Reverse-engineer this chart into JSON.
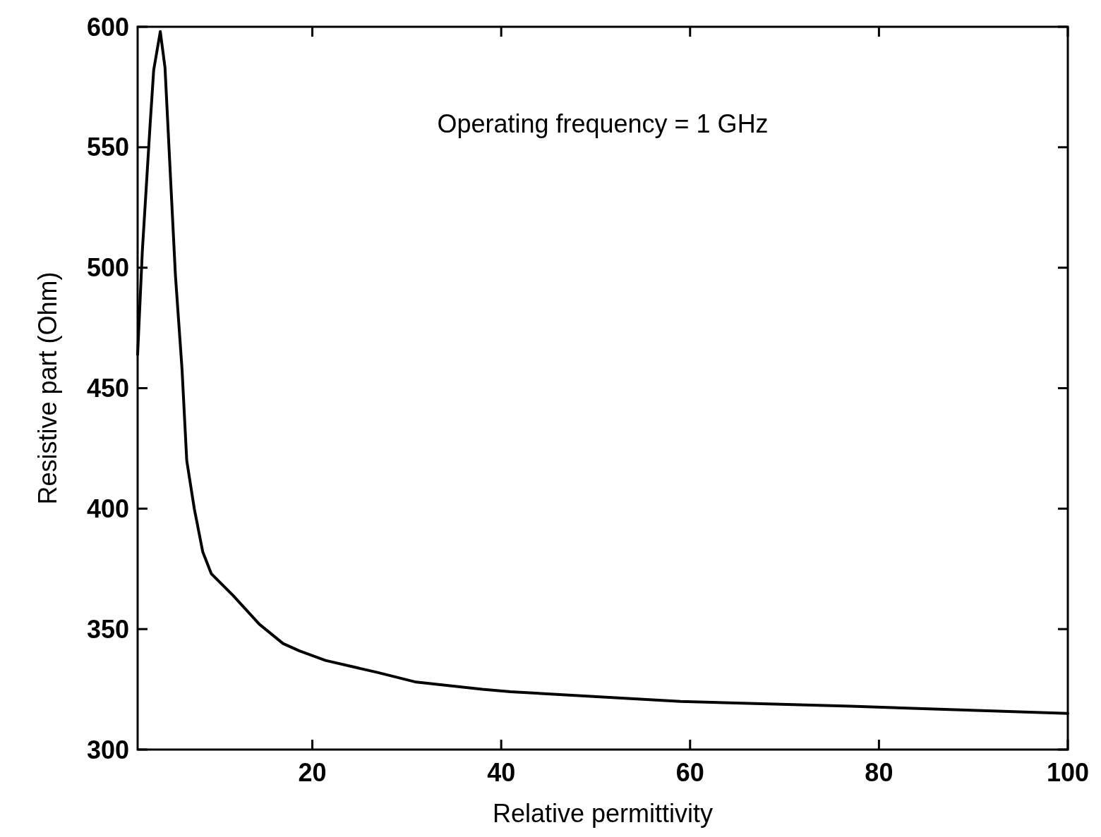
{
  "chart_data": {
    "type": "line",
    "xlabel": "Relative permittivity",
    "ylabel": "Resistive part  (Ohm)",
    "annotations": [
      "Operating frequency = 1 GHz"
    ],
    "x": [
      1.5,
      2,
      2.8,
      3.2,
      3.9,
      4.4,
      5,
      5.5,
      6.2,
      6.7,
      7.5,
      8.4,
      9.3,
      11.6,
      14.4,
      16.9,
      18.6,
      21.4,
      26.9,
      31,
      38,
      41,
      59,
      77,
      100
    ],
    "series": [
      {
        "color": "#000000",
        "values": [
          464,
          507,
          558,
          582,
          598,
          583,
          536,
          497,
          458,
          420,
          400,
          382,
          373,
          364,
          352,
          344,
          341,
          337,
          332,
          328,
          325,
          324,
          320,
          318,
          315
        ]
      }
    ],
    "xlim": [
      1.5,
      100
    ],
    "ylim": [
      300,
      600
    ],
    "xticks": [
      20,
      40,
      60,
      80,
      100
    ],
    "yticks": [
      300,
      350,
      400,
      450,
      500,
      550,
      600
    ],
    "marker": "none",
    "line_style": "solid"
  }
}
